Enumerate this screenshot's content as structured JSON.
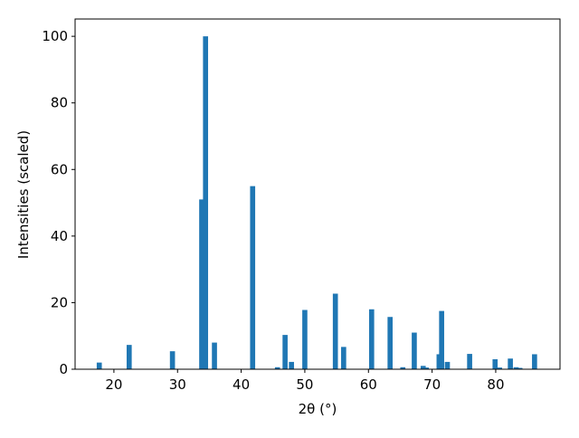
{
  "chart_data": {
    "type": "bar",
    "xlabel": "2θ (°)",
    "ylabel": "Intensities (scaled)",
    "x": [
      17.7,
      22.4,
      29.2,
      33.8,
      34.4,
      35.8,
      41.8,
      45.7,
      46.9,
      47.9,
      50.0,
      54.8,
      56.1,
      60.5,
      63.4,
      65.4,
      67.2,
      68.6,
      69.1,
      71.1,
      71.5,
      72.4,
      75.9,
      79.9,
      80.6,
      82.3,
      83.2,
      83.8,
      86.1
    ],
    "values": [
      2,
      7.3,
      5.4,
      51,
      100,
      8,
      55,
      0.6,
      10.3,
      2.2,
      17.8,
      22.7,
      6.7,
      18,
      15.7,
      0.6,
      11,
      1,
      0.5,
      4.5,
      17.5,
      2.2,
      4.6,
      3,
      0.5,
      3.2,
      0.6,
      0.4,
      4.5
    ],
    "color": "#1f77b4",
    "xlim": [
      13.9,
      90.1
    ],
    "ylim": [
      0,
      105.2
    ],
    "xticks": [
      20,
      30,
      40,
      50,
      60,
      70,
      80
    ],
    "yticks": [
      0,
      20,
      40,
      60,
      80,
      100
    ]
  }
}
